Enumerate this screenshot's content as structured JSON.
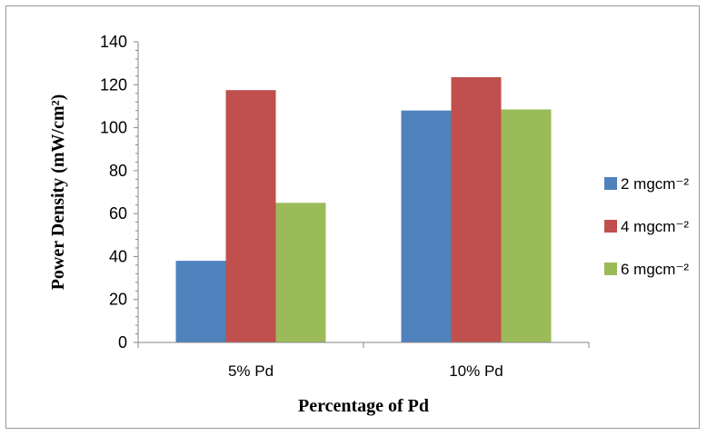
{
  "chart_data": {
    "type": "bar",
    "categories": [
      "5% Pd",
      "10% Pd"
    ],
    "series": [
      {
        "name": "2 mgcm⁻²",
        "values": [
          38,
          108
        ],
        "color": "#4f81bd"
      },
      {
        "name": "4 mgcm⁻²",
        "values": [
          117.5,
          123.5
        ],
        "color": "#c0504d"
      },
      {
        "name": "6 mgcm⁻²",
        "values": [
          65,
          108.5
        ],
        "color": "#9bbb59"
      }
    ],
    "xlabel": "Percentage of Pd",
    "ylabel": "Power Density (mW/cm²)",
    "ylim": [
      0,
      140
    ],
    "yticks": [
      0,
      20,
      40,
      60,
      80,
      100,
      120,
      140
    ],
    "grid": false,
    "legend_position": "right"
  }
}
